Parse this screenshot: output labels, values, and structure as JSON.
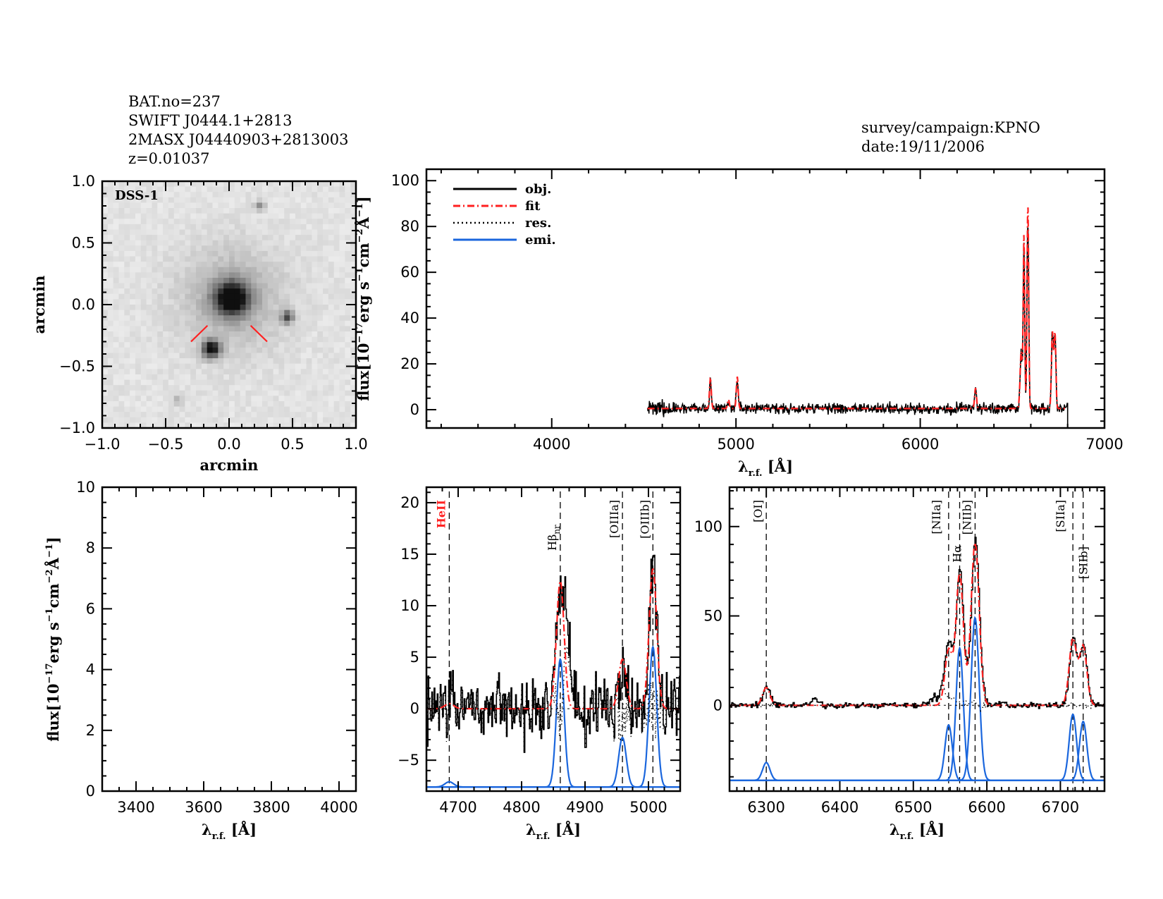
{
  "header": {
    "left_lines": [
      "BAT.no=237",
      "SWIFT J0444.1+2813",
      "2MASX J04440903+2813003",
      "z=0.01037"
    ],
    "right_lines": [
      "survey/campaign:KPNO",
      "date:19/11/2006"
    ]
  },
  "colors": {
    "obj": "#000000",
    "fit": "#ff2020",
    "res": "#000000",
    "emi": "#1a66dd",
    "marker": "#ff2020"
  },
  "chart_data": [
    {
      "id": "image",
      "type": "heatmap",
      "title": "DSS-1",
      "xlabel": "arcmin",
      "ylabel": "arcmin",
      "xlim": [
        -1.0,
        1.0
      ],
      "ylim": [
        -1.0,
        1.0
      ],
      "xticks": [
        "-1.0",
        "-0.5",
        "0.0",
        "0.5",
        "1.0"
      ],
      "yticks": [
        "-1.0",
        "-0.5",
        "0.0",
        "0.5",
        "1.0"
      ],
      "sources": [
        {
          "x": 0.02,
          "y": 0.05,
          "brightness": 1.0,
          "size": 0.13,
          "halo": 0.28
        },
        {
          "x": -0.14,
          "y": -0.36,
          "brightness": 0.95,
          "size": 0.07,
          "halo": 0.0
        },
        {
          "x": 0.46,
          "y": -0.1,
          "brightness": 0.65,
          "size": 0.05,
          "halo": 0.0
        },
        {
          "x": 0.24,
          "y": 0.8,
          "brightness": 0.35,
          "size": 0.04,
          "halo": 0.0
        },
        {
          "x": -0.4,
          "y": -0.77,
          "brightness": 0.2,
          "size": 0.04,
          "halo": 0.0
        }
      ],
      "markers": [
        {
          "x1": -0.3,
          "y1": -0.3,
          "x2": -0.17,
          "y2": -0.17
        },
        {
          "x1": 0.3,
          "y1": -0.3,
          "x2": 0.17,
          "y2": -0.17
        }
      ]
    },
    {
      "id": "full",
      "type": "line",
      "xlabel": "λr.f. [Å]",
      "ylabel": "flux[10^-17 erg s^-1 cm^-2 Å^-1]",
      "xlim": [
        3320,
        7000
      ],
      "ylim": [
        -8,
        105
      ],
      "xticks": [
        4000,
        5000,
        6000,
        7000
      ],
      "yticks": [
        0,
        20,
        40,
        60,
        80,
        100
      ],
      "data_range": [
        4520,
        6800
      ],
      "continuum": 0.5,
      "noise": 1.6,
      "lines": [
        {
          "name": "Hβ",
          "x": 4861,
          "peak": 13,
          "sigma": 5
        },
        {
          "name": "[OIIIa]",
          "x": 4959,
          "peak": 4,
          "sigma": 5
        },
        {
          "name": "[OIIIb]",
          "x": 5007,
          "peak": 14,
          "sigma": 5
        },
        {
          "name": "[OI]",
          "x": 6300,
          "peak": 9,
          "sigma": 5
        },
        {
          "name": "[NIIa]",
          "x": 6548,
          "peak": 25,
          "sigma": 6
        },
        {
          "name": "Hα",
          "x": 6563,
          "peak": 75,
          "sigma": 4
        },
        {
          "name": "[NIIb]",
          "x": 6584,
          "peak": 90,
          "sigma": 4.5
        },
        {
          "name": "[SIIa]",
          "x": 6717,
          "peak": 33,
          "sigma": 5
        },
        {
          "name": "[SIIb]",
          "x": 6731,
          "peak": 33,
          "sigma": 5
        }
      ],
      "legend": {
        "position": "top-left",
        "entries": [
          "obj.",
          "fit",
          "res.",
          "emi."
        ]
      }
    },
    {
      "id": "blue",
      "type": "line",
      "xlabel": "λr.f. [Å]",
      "ylabel": "flux[10^-17 erg s^-1 cm^-2 Å^-1]",
      "xlim": [
        3300,
        4050
      ],
      "ylim": [
        0,
        10
      ],
      "xticks": [
        3400,
        3600,
        3800,
        4000
      ],
      "yticks": [
        0,
        2,
        4,
        6,
        8,
        10
      ]
    },
    {
      "id": "hbeta",
      "type": "line",
      "xlabel": "λr.f. [Å]",
      "xlim": [
        4650,
        5050
      ],
      "ylim": [
        -8,
        21.5
      ],
      "xticks": [
        4700,
        4800,
        4900,
        5000
      ],
      "yticks": [
        -5,
        0,
        5,
        10,
        15,
        20
      ],
      "emi_baseline": -7.6,
      "noise": 2.2,
      "line_markers": [
        {
          "label": "HeII",
          "x": 4686,
          "color": "red"
        },
        {
          "label": "Hβnr",
          "x": 4861,
          "color": "black"
        },
        {
          "label": "[OIIIa]",
          "x": 4959,
          "color": "black"
        },
        {
          "label": "[OIIIb]",
          "x": 5007,
          "color": "black"
        }
      ],
      "components": [
        {
          "x": 4686,
          "peak": 0.5,
          "sigma": 7
        },
        {
          "x": 4861,
          "peak": 12.4,
          "sigma": 6
        },
        {
          "x": 4959,
          "peak": 4.8,
          "sigma": 6
        },
        {
          "x": 5007,
          "peak": 13.6,
          "sigma": 6
        }
      ],
      "obj_extra": [
        {
          "x": 4872,
          "peak": 6,
          "sigma": 5
        }
      ]
    },
    {
      "id": "halpha",
      "type": "line",
      "xlabel": "λr.f. [Å]",
      "xlim": [
        6250,
        6760
      ],
      "ylim": [
        -48,
        122
      ],
      "xticks": [
        6300,
        6400,
        6500,
        6600,
        6700
      ],
      "yticks": [
        0,
        50,
        100
      ],
      "emi_baseline": -42,
      "noise": 1.2,
      "line_markers": [
        {
          "label": "[OI]",
          "x": 6300,
          "color": "black"
        },
        {
          "label": "[NIIa]",
          "x": 6548,
          "color": "black"
        },
        {
          "label": "Hα",
          "x": 6563,
          "color": "black"
        },
        {
          "label": "[NIIb]",
          "x": 6584,
          "color": "black"
        },
        {
          "label": "[SIIa]",
          "x": 6717,
          "color": "black"
        },
        {
          "label": "[SIIb]",
          "x": 6731,
          "color": "black"
        }
      ],
      "components": [
        {
          "x": 6300,
          "peak": 10,
          "sigma": 5
        },
        {
          "x": 6548,
          "peak": 31,
          "sigma": 5
        },
        {
          "x": 6563,
          "peak": 74,
          "sigma": 5
        },
        {
          "x": 6584,
          "peak": 91,
          "sigma": 5.5
        },
        {
          "x": 6717,
          "peak": 37,
          "sigma": 5
        },
        {
          "x": 6731,
          "peak": 33,
          "sigma": 5
        }
      ],
      "obj_extra": [
        {
          "x": 6540,
          "peak": 8,
          "sigma": 10
        },
        {
          "x": 6365,
          "peak": 3,
          "sigma": 5
        }
      ]
    }
  ]
}
